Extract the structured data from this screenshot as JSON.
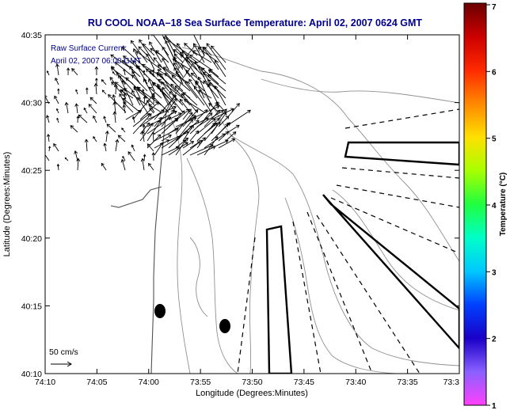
{
  "title": "RU COOL  NOAA–18  Sea Surface Temperature:  April 02, 2007 0624 GMT",
  "annotation": {
    "line1": "Raw Surface Current:",
    "line2": "April 02, 2007 06:00 GMT"
  },
  "axes": {
    "xlabel": "Longitude (Degrees:Minutes)",
    "ylabel": "Latitude (Degrees:Minutes)",
    "xticks": [
      "74:10",
      "74:05",
      "74:00",
      "73:55",
      "73:50",
      "73:45",
      "73:40",
      "73:35",
      "73:3"
    ],
    "yticks": [
      "40:35",
      "40:30",
      "40:25",
      "40:20",
      "40:15",
      "40:10"
    ]
  },
  "scale": {
    "label": "50 cm/s"
  },
  "colorbar": {
    "label": "Temperature (°C)",
    "ticks": [
      "7",
      "6",
      "5",
      "4",
      "3",
      "2",
      "1"
    ],
    "colors": [
      "#6a0000",
      "#cc0000",
      "#ff2a00",
      "#ff8800",
      "#ffe000",
      "#a8ff00",
      "#20ff40",
      "#00ffc8",
      "#00c8ff",
      "#0040ff",
      "#1a00c8",
      "#8a60ff",
      "#ff40ff"
    ]
  },
  "map_labels": []
}
